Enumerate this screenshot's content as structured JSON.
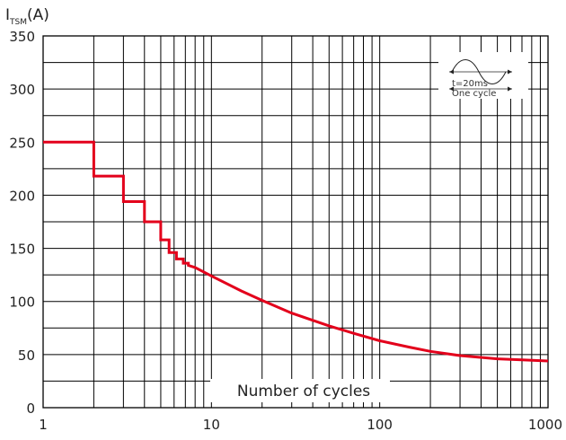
{
  "chart_data": {
    "type": "line",
    "ylabel_main": "I",
    "ylabel_sub": "TSM",
    "ylabel_unit": "(A)",
    "xlabel": "Number of cycles",
    "x_scale": "log",
    "xlim": [
      1,
      1000
    ],
    "ylim": [
      0,
      350
    ],
    "grid": true,
    "x_tick_labels": [
      "1",
      "10",
      "100",
      "1000"
    ],
    "x_ticks": [
      1,
      10,
      100,
      1000
    ],
    "y_tick_labels": [
      "0",
      "50",
      "100",
      "150",
      "200",
      "250",
      "300",
      "350"
    ],
    "y_ticks": [
      0,
      50,
      100,
      150,
      200,
      250,
      300,
      350
    ],
    "line_color": "#e3001b",
    "series": [
      {
        "x": [
          1,
          2,
          2,
          3,
          3,
          4,
          4,
          5,
          5,
          5.6,
          5.6,
          6.2,
          6.2,
          6.8,
          6.8,
          7.3,
          7.3,
          8,
          10,
          15,
          20,
          30,
          50,
          70,
          100,
          150,
          200,
          300,
          500,
          700,
          1000
        ],
        "y": [
          250,
          250,
          218,
          218,
          194,
          194,
          175,
          175,
          158,
          158,
          146,
          146,
          140,
          140,
          136,
          136,
          134,
          132,
          124,
          110,
          101,
          89,
          77,
          70,
          63,
          57,
          53,
          49,
          46,
          45,
          44
        ]
      }
    ],
    "inset": {
      "period_label": "t=20ms",
      "cycle_label": "One  cycle"
    }
  }
}
